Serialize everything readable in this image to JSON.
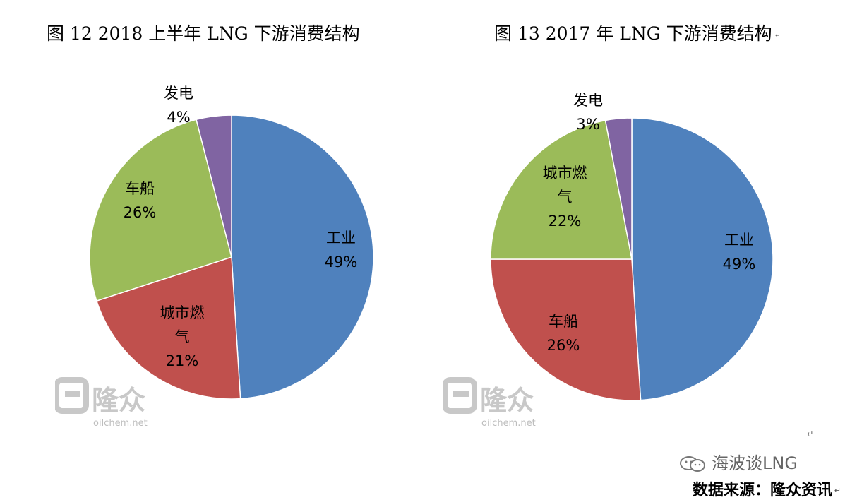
{
  "charts_header": {
    "left_title": "图 12  2018 上半年 LNG 下游消费结构",
    "right_title": "图 13  2017 年 LNG 下游消费结构"
  },
  "paragraph_mark": "↵",
  "watermark": {
    "text": "oilchem.net",
    "brand": "隆众"
  },
  "footer": {
    "brand": "海波谈LNG",
    "source": "数据来源：隆众资讯"
  },
  "colors": {
    "blue": "#4F81BD",
    "red": "#C0504D",
    "green": "#9BBB59",
    "purple": "#8064A2",
    "watermark_gray": "#c8c8c8"
  },
  "chart_data": [
    {
      "type": "pie",
      "title": "图 12  2018 上半年 LNG 下游消费结构",
      "slices": [
        {
          "label": "工业",
          "value": 49,
          "display": "49%",
          "color": "#4F81BD"
        },
        {
          "label": "城市燃气",
          "value": 21,
          "display": "21%",
          "color": "#C0504D"
        },
        {
          "label": "车船",
          "value": 26,
          "display": "26%",
          "color": "#9BBB59"
        },
        {
          "label": "发电",
          "value": 4,
          "display": "4%",
          "color": "#8064A2"
        }
      ]
    },
    {
      "type": "pie",
      "title": "图 13  2017 年 LNG 下游消费结构",
      "slices": [
        {
          "label": "工业",
          "value": 49,
          "display": "49%",
          "color": "#4F81BD"
        },
        {
          "label": "车船",
          "value": 26,
          "display": "26%",
          "color": "#C0504D"
        },
        {
          "label": "城市燃气",
          "value": 22,
          "display": "22%",
          "color": "#9BBB59"
        },
        {
          "label": "发电",
          "value": 3,
          "display": "3%",
          "color": "#8064A2"
        }
      ]
    }
  ]
}
